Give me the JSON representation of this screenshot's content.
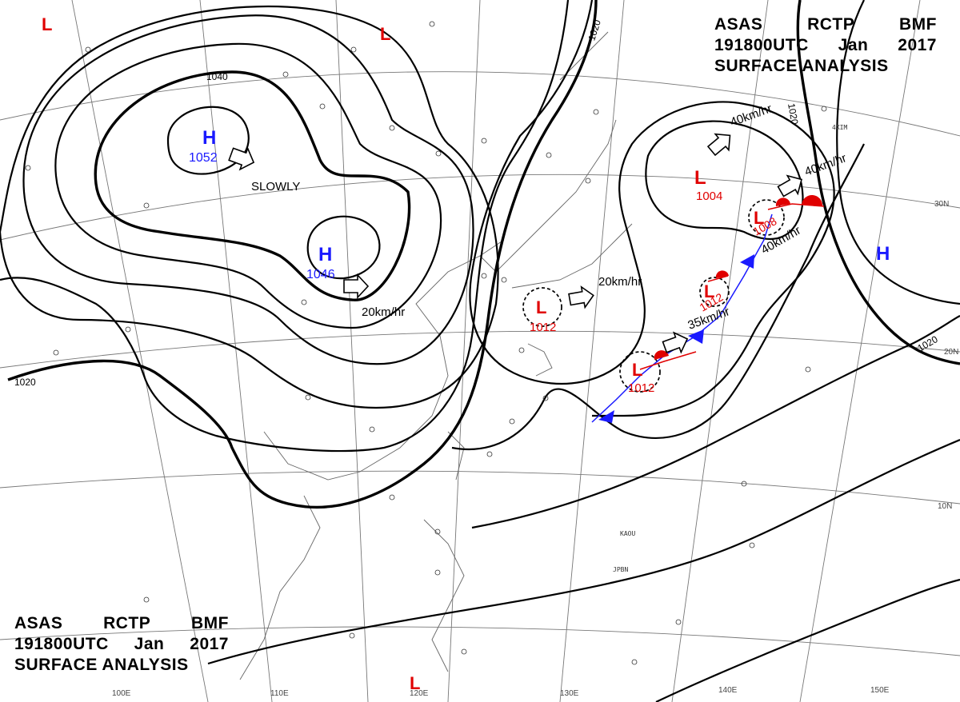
{
  "header_top": {
    "line1": [
      "ASAS",
      "RCTP",
      "BMF"
    ],
    "line2": [
      "191800UTC",
      "Jan",
      "2017"
    ],
    "line3": "SURFACE ANALYSIS"
  },
  "header_bottom": {
    "line1": [
      "ASAS",
      "RCTP",
      "BMF"
    ],
    "line2": [
      "191800UTC",
      "Jan",
      "2017"
    ],
    "line3": "SURFACE ANALYSIS"
  },
  "isobar_labels": [
    "1040",
    "1020",
    "1020",
    "1020",
    "1020"
  ],
  "latitude_labels": [
    "30N",
    "20N",
    "10N"
  ],
  "longitude_labels": [
    "100E",
    "110E",
    "120E",
    "130E",
    "140E",
    "150E"
  ],
  "pressure_centers": [
    {
      "type": "H",
      "value": "1052",
      "color": "#1a1aff"
    },
    {
      "type": "H",
      "value": "1046",
      "color": "#1a1aff"
    },
    {
      "type": "H",
      "value": "",
      "color": "#1a1aff"
    },
    {
      "type": "L",
      "value": "1004",
      "color": "#e00000"
    },
    {
      "type": "L",
      "value": "1008",
      "color": "#e00000"
    },
    {
      "type": "L",
      "value": "1012",
      "color": "#e00000"
    },
    {
      "type": "L",
      "value": "1012",
      "color": "#e00000"
    },
    {
      "type": "L",
      "value": "1012",
      "color": "#e00000"
    },
    {
      "type": "L",
      "value": "",
      "color": "#e00000"
    },
    {
      "type": "L",
      "value": "",
      "color": "#e00000"
    },
    {
      "type": "L",
      "value": "",
      "color": "#e00000"
    }
  ],
  "movement_labels": [
    "SLOWLY",
    "20km/hr",
    "20km/hr",
    "35km/hr",
    "40km/hr",
    "40km/hr",
    "40km/hr"
  ],
  "station_labels": [
    "KAOU",
    "JPBN",
    "4XIM"
  ],
  "colors": {
    "high": "#1a1aff",
    "low": "#e00000",
    "front_warm": "#e00000",
    "front_cold": "#1a1aff"
  }
}
